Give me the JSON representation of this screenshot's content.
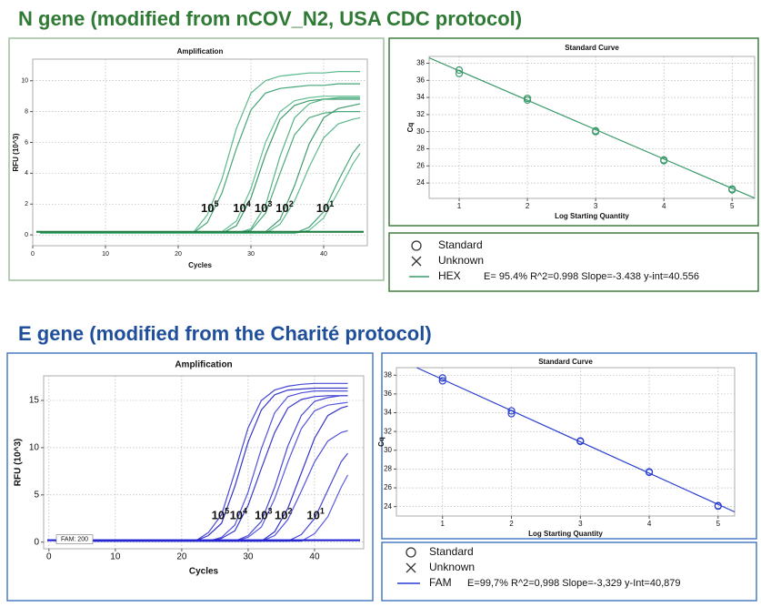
{
  "headings": [
    "N gene (modified from nCOV_N2, USA CDC protocol)",
    "E gene (modified from the Charité protocol)"
  ],
  "chart_data": [
    {
      "type": "line",
      "title": "Amplification",
      "x_label": "Cycles",
      "y_label": "RFU (10^3)",
      "x": [
        1,
        10,
        20,
        22,
        24,
        26,
        28,
        30,
        32,
        34,
        36,
        38,
        40,
        42,
        44,
        45
      ],
      "series": [
        {
          "color": "#5cb98c",
          "values": [
            0.1,
            0.1,
            0.1,
            0.1,
            1.3,
            3.6,
            6.9,
            9.2,
            10.0,
            10.3,
            10.4,
            10.5,
            10.5,
            10.6,
            10.6,
            10.6
          ]
        },
        {
          "color": "#47a577",
          "values": [
            0.1,
            0.1,
            0.1,
            0.1,
            0.8,
            2.7,
            5.6,
            8.1,
            9.2,
            9.5,
            9.6,
            9.7,
            9.7,
            9.8,
            9.8,
            9.8
          ]
        },
        {
          "color": "#62bf91",
          "values": [
            0.1,
            0.1,
            0.1,
            0.1,
            0.1,
            0.2,
            0.9,
            3.0,
            6.0,
            8.0,
            8.7,
            8.9,
            9.0,
            9.0,
            9.0,
            9.0
          ]
        },
        {
          "color": "#3f9b6d",
          "values": [
            0.1,
            0.1,
            0.1,
            0.1,
            0.1,
            0.1,
            0.6,
            2.4,
            5.2,
            7.5,
            8.4,
            8.7,
            8.8,
            8.8,
            8.8,
            8.8
          ]
        },
        {
          "color": "#56b386",
          "values": [
            0.1,
            0.1,
            0.1,
            0.1,
            0.1,
            0.1,
            0.1,
            0.4,
            1.9,
            5.1,
            7.6,
            8.5,
            8.8,
            8.9,
            8.9,
            8.9
          ]
        },
        {
          "color": "#4aa97b",
          "values": [
            0.1,
            0.1,
            0.1,
            0.1,
            0.1,
            0.1,
            0.1,
            0.3,
            1.4,
            4.0,
            6.5,
            7.6,
            7.9,
            8.0,
            8.0,
            8.0
          ]
        },
        {
          "color": "#3f9b6d",
          "values": [
            0.1,
            0.1,
            0.1,
            0.1,
            0.1,
            0.1,
            0.1,
            0.1,
            0.2,
            1.0,
            3.2,
            5.9,
            7.6,
            8.2,
            8.4,
            8.5
          ]
        },
        {
          "color": "#5cb98c",
          "values": [
            0.1,
            0.1,
            0.1,
            0.1,
            0.1,
            0.1,
            0.1,
            0.1,
            0.1,
            0.7,
            2.2,
            4.4,
            6.3,
            7.2,
            7.5,
            7.6
          ]
        },
        {
          "color": "#47a577",
          "values": [
            0.1,
            0.1,
            0.1,
            0.1,
            0.1,
            0.1,
            0.1,
            0.1,
            0.1,
            0.1,
            0.1,
            0.5,
            1.5,
            3.5,
            5.3,
            5.9
          ]
        },
        {
          "color": "#62bf91",
          "values": [
            0.1,
            0.1,
            0.1,
            0.1,
            0.1,
            0.1,
            0.1,
            0.1,
            0.1,
            0.1,
            0.1,
            0.3,
            1.1,
            2.8,
            4.6,
            5.3
          ]
        }
      ],
      "threshold": 0.2,
      "threshold_color": "#1d7a3e",
      "annotations": [
        {
          "text": "10",
          "sup": "5"
        },
        {
          "text": "10",
          "sup": "4"
        },
        {
          "text": "10",
          "sup": "3"
        },
        {
          "text": "10",
          "sup": "2"
        },
        {
          "text": "10",
          "sup": "1"
        }
      ],
      "xlim": [
        0,
        46
      ],
      "xticks": [
        0,
        10,
        20,
        30,
        40
      ],
      "ylim": [
        -0.7,
        11.4
      ],
      "yticks": [
        0,
        2,
        4,
        6,
        8,
        10
      ],
      "grid": true
    },
    {
      "type": "scatter",
      "title": "Standard Curve",
      "x_label": "Log Starting Quantity",
      "y_label": "Cq",
      "x": [
        1,
        1,
        2,
        2,
        3,
        3,
        4,
        4,
        5,
        5
      ],
      "values": [
        37.2,
        36.8,
        33.9,
        33.7,
        30.1,
        30.0,
        26.7,
        26.6,
        23.3,
        23.2
      ],
      "color": "#3a9a6a",
      "fit": {
        "slope": -3.438,
        "intercept": 40.556
      },
      "legend": {
        "entries": [
          "Standard",
          "Unknown"
        ],
        "series_name": "HEX",
        "stats": "E= 95.4% R^2=0.998 Slope=-3.438 y-int=40.556"
      },
      "xlim": [
        0.56,
        5.33
      ],
      "xticks": [
        1,
        2,
        3,
        4,
        5
      ],
      "ylim": [
        22.2,
        38.8
      ],
      "yticks": [
        24,
        26,
        28,
        30,
        32,
        34,
        36,
        38
      ],
      "grid": true
    },
    {
      "type": "line",
      "title": "Amplification",
      "x_label": "Cycles",
      "y_label": "RFU (10^3)",
      "x": [
        1,
        10,
        20,
        22,
        24,
        26,
        28,
        30,
        32,
        34,
        36,
        38,
        40,
        42,
        44,
        45
      ],
      "series": [
        {
          "color": "#4848d4",
          "values": [
            0.1,
            0.1,
            0.1,
            0.1,
            1.0,
            2.9,
            7.4,
            12.1,
            15.0,
            16.1,
            16.5,
            16.7,
            16.8,
            16.8,
            16.8,
            16.8
          ]
        },
        {
          "color": "#3535c8",
          "values": [
            0.1,
            0.1,
            0.1,
            0.1,
            0.7,
            2.0,
            5.9,
            10.6,
            14.0,
            15.6,
            16.1,
            16.2,
            16.3,
            16.3,
            16.3,
            16.3
          ]
        },
        {
          "color": "#5252dc",
          "values": [
            0.1,
            0.1,
            0.1,
            0.1,
            0.1,
            0.5,
            1.8,
            5.3,
            9.9,
            13.7,
            15.4,
            15.8,
            16.0,
            16.0,
            16.0,
            16.0
          ]
        },
        {
          "color": "#3a3acc",
          "values": [
            0.1,
            0.1,
            0.1,
            0.1,
            0.1,
            0.4,
            1.2,
            3.9,
            7.8,
            11.6,
            14.2,
            15.1,
            15.4,
            15.5,
            15.5,
            15.5
          ]
        },
        {
          "color": "#4848d4",
          "values": [
            0.1,
            0.1,
            0.1,
            0.1,
            0.1,
            0.1,
            0.1,
            0.7,
            2.2,
            5.8,
            10.2,
            13.4,
            14.9,
            15.3,
            15.5,
            15.5
          ]
        },
        {
          "color": "#5a5ae0",
          "values": [
            0.1,
            0.1,
            0.1,
            0.1,
            0.1,
            0.1,
            0.1,
            0.5,
            1.6,
            4.6,
            8.5,
            12.0,
            13.9,
            14.5,
            14.7,
            14.8
          ]
        },
        {
          "color": "#3535c8",
          "values": [
            0.1,
            0.1,
            0.1,
            0.1,
            0.1,
            0.1,
            0.1,
            0.1,
            0.1,
            1.1,
            3.6,
            7.3,
            11.0,
            13.4,
            14.2,
            14.4
          ]
        },
        {
          "color": "#5252dc",
          "values": [
            0.1,
            0.1,
            0.1,
            0.1,
            0.1,
            0.1,
            0.1,
            0.1,
            0.1,
            0.7,
            2.4,
            5.4,
            8.5,
            10.7,
            11.6,
            11.8
          ]
        },
        {
          "color": "#4848d4",
          "values": [
            0.1,
            0.1,
            0.1,
            0.1,
            0.1,
            0.1,
            0.1,
            0.1,
            0.1,
            0.1,
            0.1,
            0.8,
            2.5,
            5.5,
            8.5,
            9.4
          ]
        },
        {
          "color": "#5a5ae0",
          "values": [
            0.1,
            0.1,
            0.1,
            0.1,
            0.1,
            0.1,
            0.1,
            0.1,
            0.1,
            0.1,
            0.1,
            0.1,
            0.9,
            2.7,
            5.8,
            7.1
          ]
        }
      ],
      "threshold": 0.2,
      "threshold_color": "#1a1ad0",
      "threshold_label": "FAM: 200",
      "annotations": [
        {
          "text": "10",
          "sup": "5"
        },
        {
          "text": "10",
          "sup": "4"
        },
        {
          "text": "10",
          "sup": "3"
        },
        {
          "text": "10",
          "sup": "2"
        },
        {
          "text": "10",
          "sup": "1"
        }
      ],
      "xlim": [
        -0.8,
        47.4
      ],
      "xticks": [
        0,
        10,
        20,
        30,
        40
      ],
      "ylim": [
        -0.7,
        17.6
      ],
      "yticks": [
        0,
        5,
        10,
        15
      ],
      "grid": true
    },
    {
      "type": "scatter",
      "title": "Standard Curve",
      "x_label": "Log Starting Quantity",
      "y_label": "Cq",
      "x": [
        1,
        1,
        2,
        2,
        3,
        3,
        4,
        4,
        5,
        5
      ],
      "values": [
        37.7,
        37.4,
        34.2,
        33.9,
        31.0,
        30.95,
        27.7,
        27.65,
        24.1,
        24.05
      ],
      "color": "#2a3fd0",
      "fit": {
        "slope": -3.329,
        "intercept": 40.879
      },
      "legend": {
        "entries": [
          "Standard",
          "Unknown"
        ],
        "series_name": "FAM",
        "stats": "E=99,7% R^2=0,998 Slope=-3,329 y-Int=40,879"
      },
      "xlim": [
        0.33,
        5.24
      ],
      "xticks": [
        1,
        2,
        3,
        4,
        5
      ],
      "ylim": [
        23.0,
        38.8
      ],
      "yticks": [
        24,
        26,
        28,
        30,
        32,
        34,
        36,
        38
      ],
      "grid": true
    }
  ]
}
